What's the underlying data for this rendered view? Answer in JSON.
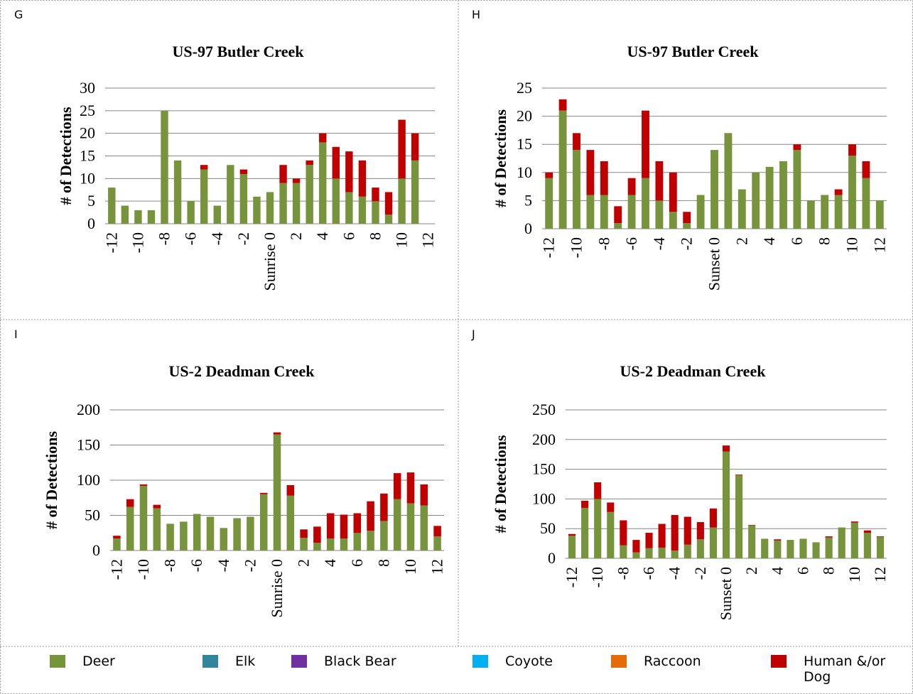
{
  "chart_data": [
    {
      "type": "bar",
      "panel_label": "G",
      "title": "US-97 Butler Creek",
      "y_label": "# of Detections",
      "categories": [
        "-12",
        null,
        "-10",
        null,
        "-8",
        null,
        "-6",
        null,
        "-4",
        null,
        "-2",
        null,
        "Sunrise 0",
        null,
        "2",
        null,
        "4",
        null,
        "6",
        null,
        "8",
        null,
        "10",
        null,
        "12"
      ],
      "series": [
        {
          "name": "Deer",
          "color": "#77933c",
          "values": [
            8,
            4,
            3,
            3,
            25,
            14,
            5,
            12,
            4,
            13,
            11,
            6,
            7,
            9,
            9,
            13,
            18,
            10,
            7,
            6,
            5,
            2,
            10,
            14,
            null
          ]
        },
        {
          "name": "Human &/or Dog",
          "color": "#c00000",
          "values": [
            0,
            0,
            0,
            0,
            0,
            0,
            0,
            1,
            0,
            0,
            1,
            0,
            0,
            4,
            1,
            1,
            2,
            7,
            9,
            8,
            3,
            5,
            13,
            6,
            null
          ]
        }
      ],
      "ylim": [
        0,
        30
      ],
      "yticks": [
        0,
        5,
        10,
        15,
        20,
        25,
        30
      ],
      "grid": true,
      "stacked": true
    },
    {
      "type": "bar",
      "panel_label": "H",
      "title": "US-97 Butler Creek",
      "y_label": "# of Detections",
      "categories": [
        "-12",
        null,
        "-10",
        null,
        "-8",
        null,
        "-6",
        null,
        "-4",
        null,
        "-2",
        null,
        "Sunset 0",
        null,
        "2",
        null,
        "4",
        null,
        "6",
        null,
        "8",
        null,
        "10",
        null,
        "12"
      ],
      "series": [
        {
          "name": "Deer",
          "color": "#77933c",
          "values": [
            9,
            21,
            14,
            6,
            6,
            1,
            6,
            9,
            5,
            3,
            1,
            6,
            14,
            17,
            7,
            10,
            11,
            12,
            14,
            5,
            6,
            6,
            13,
            9,
            5
          ]
        },
        {
          "name": "Human &/or Dog",
          "color": "#c00000",
          "values": [
            1,
            2,
            3,
            8,
            6,
            3,
            3,
            12,
            7,
            7,
            2,
            0,
            0,
            0,
            0,
            0,
            0,
            0,
            1,
            0,
            0,
            1,
            2,
            3,
            0
          ]
        }
      ],
      "ylim": [
        0,
        25
      ],
      "yticks": [
        0,
        5,
        10,
        15,
        20,
        25
      ],
      "grid": true,
      "stacked": true
    },
    {
      "type": "bar",
      "panel_label": "I",
      "title": "US-2 Deadman Creek",
      "y_label": "# of Detections",
      "categories": [
        "-12",
        null,
        "-10",
        null,
        "-8",
        null,
        "-6",
        null,
        "-4",
        null,
        "-2",
        null,
        "Sunrise 0",
        null,
        "2",
        null,
        "4",
        null,
        "6",
        null,
        "8",
        null,
        "10",
        null,
        "12"
      ],
      "series": [
        {
          "name": "Deer",
          "color": "#77933c",
          "values": [
            17,
            62,
            92,
            60,
            38,
            41,
            52,
            48,
            32,
            46,
            48,
            80,
            165,
            78,
            18,
            11,
            17,
            17,
            25,
            28,
            42,
            73,
            67,
            64,
            20
          ]
        },
        {
          "name": "Human &/or Dog",
          "color": "#c00000",
          "values": [
            4,
            11,
            2,
            5,
            0,
            0,
            0,
            0,
            0,
            0,
            0,
            2,
            3,
            15,
            12,
            23,
            36,
            34,
            28,
            42,
            39,
            37,
            44,
            30,
            15
          ]
        }
      ],
      "ylim": [
        0,
        200
      ],
      "yticks": [
        0,
        50,
        100,
        150,
        200
      ],
      "grid": true,
      "stacked": true
    },
    {
      "type": "bar",
      "panel_label": "J",
      "title": "US-2 Deadman Creek",
      "y_label": "# of Detections",
      "categories": [
        "-12",
        null,
        "-10",
        null,
        "-8",
        null,
        "-6",
        null,
        "-4",
        null,
        "-2",
        null,
        "Sunset 0",
        null,
        "2",
        null,
        "4",
        null,
        "6",
        null,
        "8",
        null,
        "10",
        null,
        "12"
      ],
      "series": [
        {
          "name": "Deer",
          "color": "#77933c",
          "values": [
            38,
            85,
            100,
            78,
            22,
            10,
            17,
            18,
            13,
            23,
            32,
            52,
            180,
            140,
            55,
            33,
            30,
            31,
            33,
            27,
            35,
            52,
            60,
            43,
            36
          ]
        },
        {
          "name": "Human &/or Dog",
          "color": "#c00000",
          "values": [
            3,
            12,
            28,
            16,
            42,
            21,
            26,
            40,
            60,
            47,
            29,
            32,
            10,
            1,
            1,
            0,
            2,
            0,
            0,
            0,
            2,
            0,
            2,
            4,
            1
          ]
        }
      ],
      "ylim": [
        0,
        250
      ],
      "yticks": [
        0,
        50,
        100,
        150,
        200,
        250
      ],
      "grid": true,
      "stacked": true
    }
  ],
  "legend": {
    "items": [
      {
        "name": "Deer",
        "color": "#77933c"
      },
      {
        "name": "Elk",
        "color": "#31859c"
      },
      {
        "name": "Black Bear",
        "color": "#7030a0"
      },
      {
        "name": "Coyote",
        "color": "#00b0f0"
      },
      {
        "name": "Raccoon",
        "color": "#e46c0a"
      },
      {
        "name": "Human &/or Dog",
        "color": "#c00000"
      }
    ]
  }
}
